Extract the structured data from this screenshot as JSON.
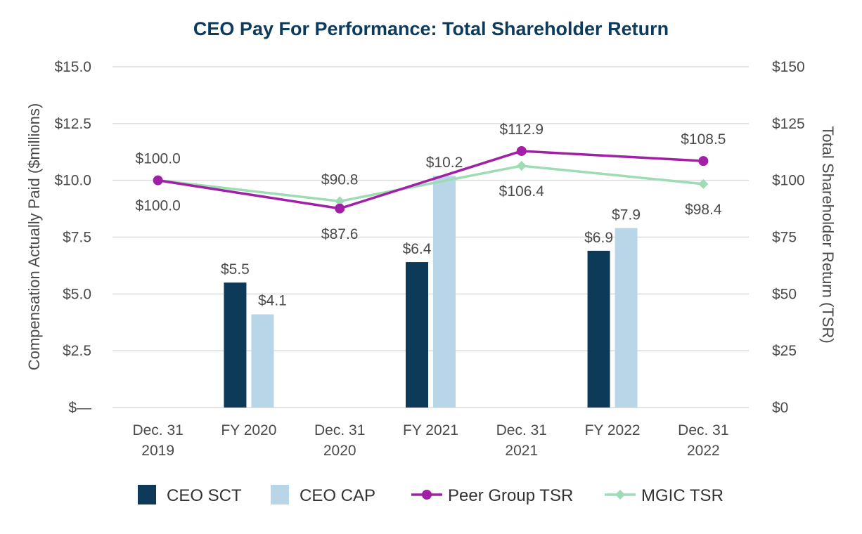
{
  "chart_data": {
    "type": "bar",
    "title": "CEO Pay For Performance: Total Shareholder Return",
    "categories": [
      "Dec. 31\n2019",
      "FY 2020",
      "Dec. 31\n2020",
      "FY 2021",
      "Dec. 31\n2021",
      "FY 2022",
      "Dec. 31\n2022"
    ],
    "ylabel": "Compensation Actually Paid ($millions)",
    "y2label": "Total Shareholder Return (TSR)",
    "ylim": [
      0,
      15
    ],
    "y2lim": [
      0,
      150
    ],
    "yticks": [
      "$—",
      "$2.5",
      "$5.0",
      "$7.5",
      "$10.0",
      "$12.5",
      "$15.0"
    ],
    "y2ticks": [
      "$0",
      "$25",
      "$50",
      "$75",
      "$100",
      "$125",
      "$150"
    ],
    "grid": true,
    "legend_position": "bottom",
    "series": [
      {
        "name": "CEO SCT",
        "type": "bar",
        "axis": "left",
        "color": "#0e3a5a",
        "values": [
          null,
          5.5,
          null,
          6.4,
          null,
          6.9,
          null
        ],
        "labels": [
          null,
          "$5.5",
          null,
          "$6.4",
          null,
          "$6.9",
          null
        ]
      },
      {
        "name": "CEO CAP",
        "type": "bar",
        "axis": "left",
        "color": "#b8d6e8",
        "values": [
          null,
          4.1,
          null,
          10.2,
          null,
          7.9,
          null
        ],
        "labels": [
          null,
          "$4.1",
          null,
          "$10.2",
          null,
          "$7.9",
          null
        ]
      },
      {
        "name": "Peer Group TSR",
        "type": "line",
        "axis": "right",
        "color": "#a020a6",
        "marker": "circle",
        "values": [
          100.0,
          null,
          87.6,
          null,
          112.9,
          null,
          108.5
        ],
        "labels": [
          "$100.0",
          null,
          "$87.6",
          null,
          "$112.9",
          null,
          "$108.5"
        ]
      },
      {
        "name": "MGIC TSR",
        "type": "line",
        "axis": "right",
        "color": "#9edcb4",
        "marker": "diamond",
        "values": [
          100.0,
          null,
          90.8,
          null,
          106.4,
          null,
          98.4
        ],
        "labels": [
          "$100.0",
          null,
          "$90.8",
          null,
          "$106.4",
          null,
          "$98.4"
        ]
      }
    ]
  }
}
